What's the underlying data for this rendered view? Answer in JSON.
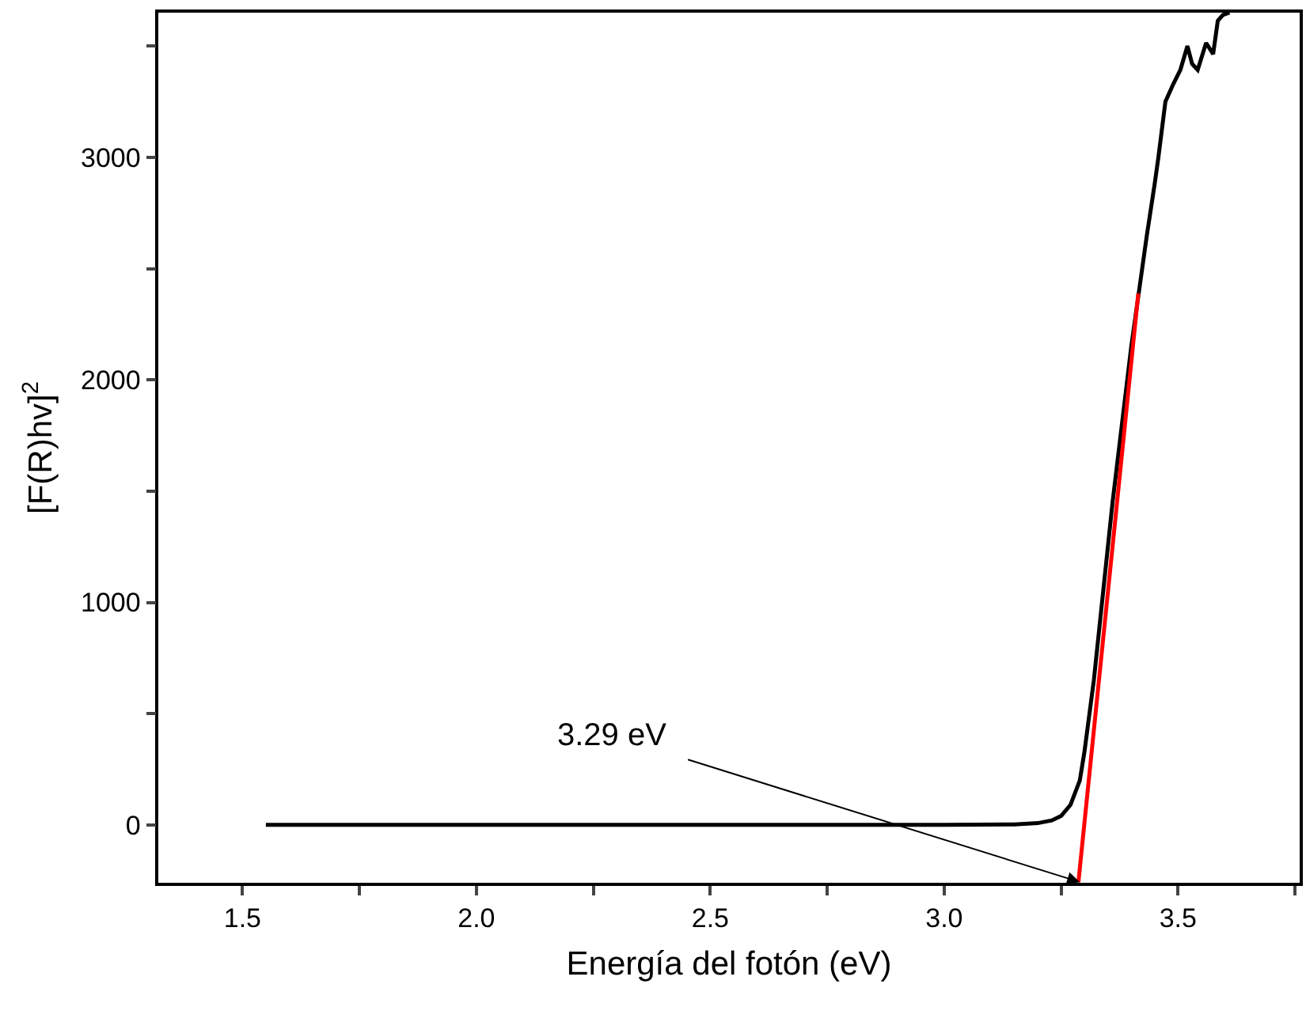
{
  "chart_data": {
    "type": "line",
    "xlabel": "Energía del fotón (eV)",
    "ylabel": "[F(R)hv]$^{2}$",
    "xlim": [
      1.32,
      3.76
    ],
    "ylim": [
      -260,
      3650
    ],
    "xticks": [
      1.5,
      {
        "value": 1.75,
        "label": null
      },
      {
        "value": 2,
        "label": "2.0"
      },
      {
        "value": 2.25,
        "label": null
      },
      2.5,
      {
        "value": 2.75,
        "label": null
      },
      {
        "value": 3,
        "label": "3.0"
      },
      {
        "value": 3.25,
        "label": null
      },
      3.5,
      {
        "value": 3.75,
        "label": null
      }
    ],
    "yticks": [
      0,
      {
        "value": 500,
        "label": null
      },
      1000,
      {
        "value": 1500,
        "label": null
      },
      2000,
      {
        "value": 2500,
        "label": null
      },
      3000,
      {
        "value": 3500,
        "label": null
      }
    ],
    "marker": "none",
    "line_style": "solid",
    "series": [
      {
        "color": "#000000",
        "x": [
          1.55,
          2.0,
          2.5,
          3.0,
          3.15,
          3.2,
          3.23,
          3.25,
          3.27,
          3.29,
          3.3,
          3.32,
          3.34,
          3.36,
          3.38,
          3.4,
          3.42,
          3.433,
          3.45,
          3.458,
          3.473,
          3.49,
          3.505,
          3.52,
          3.53,
          3.542,
          3.56,
          3.575,
          3.585,
          3.596,
          3.61
        ],
        "values": [
          0,
          0,
          0,
          0,
          2,
          8,
          20,
          40,
          90,
          200,
          330,
          650,
          1050,
          1450,
          1800,
          2150,
          2450,
          2645,
          2880,
          3000,
          3250,
          3330,
          3393,
          3500,
          3420,
          3393,
          3514,
          3464,
          3614,
          3640,
          3650
        ]
      },
      {
        "type": "line",
        "color": "#ff0000",
        "x": [
          3.287,
          3.415
        ],
        "values": [
          -257,
          2388
        ]
      }
    ],
    "annotations": [
      {
        "text": "3.29 eV",
        "x": 3.29,
        "y": -257
      }
    ]
  }
}
